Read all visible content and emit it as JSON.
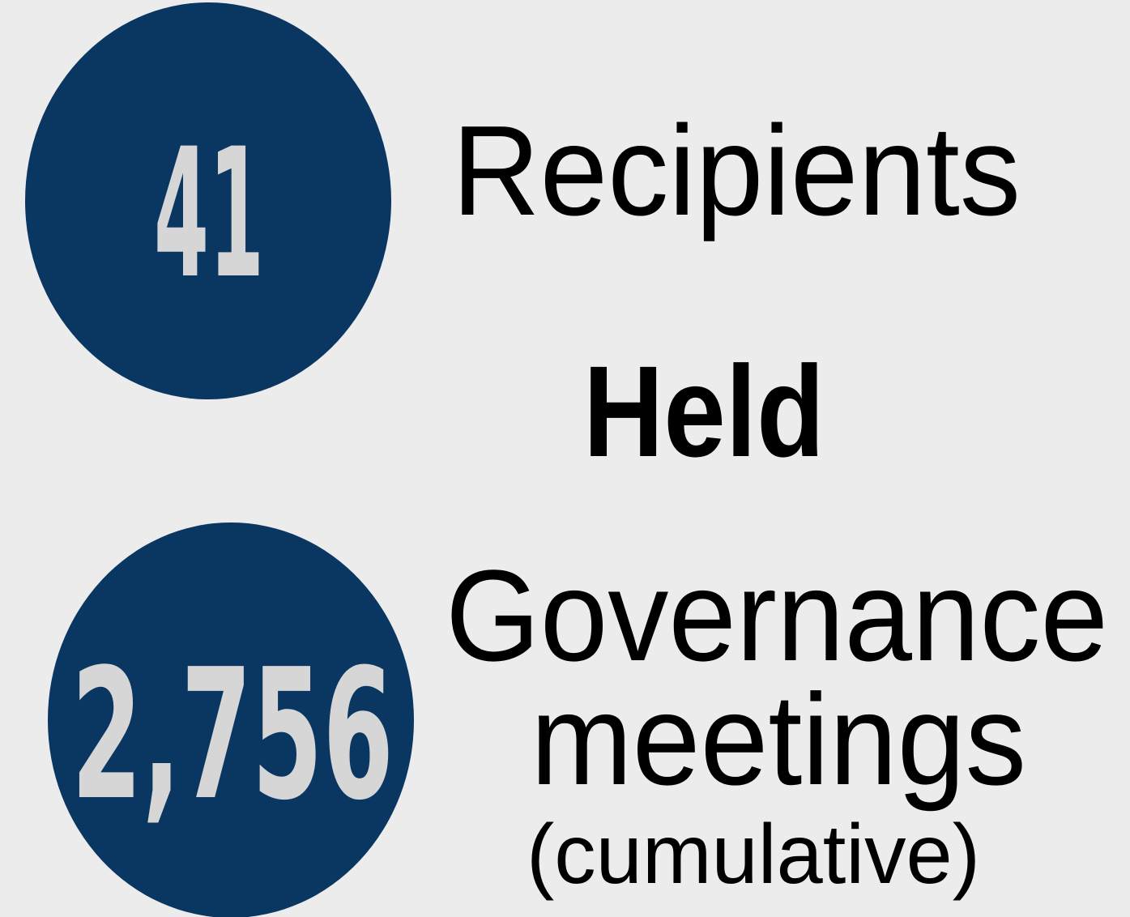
{
  "stats": [
    {
      "value": "41",
      "label": "Recipients"
    },
    {
      "heading": "Held"
    },
    {
      "value": "2,756",
      "label": "Governance",
      "label2": "meetings",
      "note": "(cumulative)"
    }
  ]
}
